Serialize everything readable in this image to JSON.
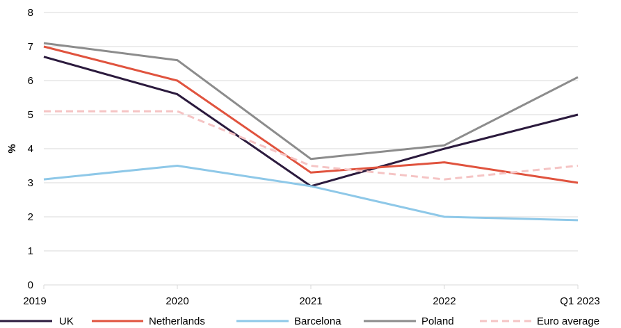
{
  "chart_data": {
    "type": "line",
    "title": "",
    "xlabel": "",
    "ylabel": "%",
    "categories": [
      "2019",
      "2020",
      "2021",
      "2022",
      "Q1 2023"
    ],
    "ylim": [
      0,
      8
    ],
    "yticks": [
      0,
      1,
      2,
      3,
      4,
      5,
      6,
      7,
      8
    ],
    "grid": "horizontal",
    "legend_position": "bottom",
    "series": [
      {
        "name": "UK",
        "values": [
          6.7,
          5.6,
          2.9,
          4.0,
          5.0
        ],
        "color": "#2b1a3d",
        "dash": false
      },
      {
        "name": "Netherlands",
        "values": [
          7.0,
          6.0,
          3.3,
          3.6,
          3.0
        ],
        "color": "#e0533e",
        "dash": false
      },
      {
        "name": "Barcelona",
        "values": [
          3.1,
          3.5,
          2.9,
          2.0,
          1.9
        ],
        "color": "#8ec8e8",
        "dash": false
      },
      {
        "name": "Poland",
        "values": [
          7.1,
          6.6,
          3.7,
          4.1,
          6.1
        ],
        "color": "#8c8c8c",
        "dash": false
      },
      {
        "name": "Euro average",
        "values": [
          5.1,
          5.1,
          3.5,
          3.1,
          3.5
        ],
        "color": "#f5c4c4",
        "dash": true
      }
    ]
  }
}
